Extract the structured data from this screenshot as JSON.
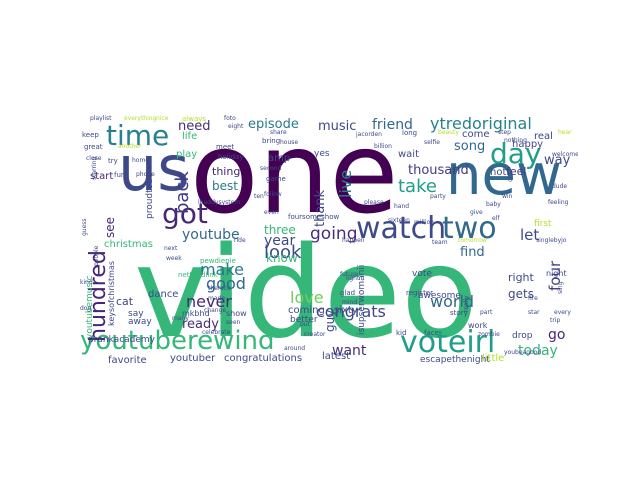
{
  "words": [
    {
      "text": "video",
      "color": "#35b779"
    },
    {
      "text": "one",
      "color": "#440154"
    },
    {
      "text": "new",
      "color": "#31688e"
    },
    {
      "text": "us",
      "color": "#3e4989"
    },
    {
      "text": "time",
      "color": "#26828e"
    },
    {
      "text": "got",
      "color": "#482677"
    },
    {
      "text": "day",
      "color": "#1f9e89"
    },
    {
      "text": "two",
      "color": "#31688e"
    },
    {
      "text": "watch",
      "color": "#3e4989"
    },
    {
      "text": "youtuberewind",
      "color": "#35b779"
    },
    {
      "text": "voteirl",
      "color": "#1f9e89"
    },
    {
      "text": "hundred",
      "color": "#482677"
    },
    {
      "text": "ytredoriginal",
      "color": "#26828e"
    },
    {
      "text": "episode",
      "color": "#2a788e"
    },
    {
      "text": "music",
      "color": "#3e4989"
    },
    {
      "text": "friend",
      "color": "#31688e"
    },
    {
      "text": "need",
      "color": "#472d7b"
    },
    {
      "text": "back",
      "color": "#443983"
    },
    {
      "text": "look",
      "color": "#3e4989"
    },
    {
      "text": "going",
      "color": "#472d7b"
    },
    {
      "text": "make",
      "color": "#2a788e"
    },
    {
      "text": "good",
      "color": "#31688e"
    },
    {
      "text": "year",
      "color": "#3e4989"
    },
    {
      "text": "love",
      "color": "#6ece58"
    },
    {
      "text": "never",
      "color": "#482677"
    },
    {
      "text": "youtube",
      "color": "#31688e"
    },
    {
      "text": "congrats",
      "color": "#3e4989"
    },
    {
      "text": "world",
      "color": "#31688e"
    },
    {
      "text": "want",
      "color": "#472d7b"
    },
    {
      "text": "today",
      "color": "#35b779"
    },
    {
      "text": "thousand",
      "color": "#443983"
    },
    {
      "text": "take",
      "color": "#1f9e89"
    },
    {
      "text": "song",
      "color": "#31688e"
    },
    {
      "text": "live",
      "color": "#2a788e"
    },
    {
      "text": "let",
      "color": "#3e4989"
    },
    {
      "text": "four",
      "color": "#433e85"
    },
    {
      "text": "go",
      "color": "#482677"
    },
    {
      "text": "gets",
      "color": "#3e4989"
    },
    {
      "text": "find",
      "color": "#31688e"
    },
    {
      "text": "ready",
      "color": "#472d7b"
    },
    {
      "text": "three",
      "color": "#35b779"
    },
    {
      "text": "thank",
      "color": "#3e4989"
    },
    {
      "text": "know",
      "color": "#35b779"
    },
    {
      "text": "guy",
      "color": "#3e4989"
    },
    {
      "text": "best",
      "color": "#2a788e"
    },
    {
      "text": "christmas",
      "color": "#35b779"
    },
    {
      "text": "see",
      "color": "#482677"
    },
    {
      "text": "way",
      "color": "#3e4989"
    },
    {
      "text": "feel",
      "color": "#443983"
    },
    {
      "text": "hot",
      "color": "#3e4989"
    },
    {
      "text": "right",
      "color": "#3e4989"
    },
    {
      "text": "happy",
      "color": "#3e4989"
    },
    {
      "text": "wait",
      "color": "#3e4989"
    },
    {
      "text": "come",
      "color": "#3e4989"
    },
    {
      "text": "thing",
      "color": "#482677"
    },
    {
      "text": "start",
      "color": "#482677"
    },
    {
      "text": "life",
      "color": "#35b779"
    },
    {
      "text": "play",
      "color": "#35b779"
    },
    {
      "text": "favorite",
      "color": "#3e4989"
    },
    {
      "text": "youtuber",
      "color": "#3e4989"
    },
    {
      "text": "congratulations",
      "color": "#3e4989"
    },
    {
      "text": "latest",
      "color": "#3e4989"
    },
    {
      "text": "escapethenight",
      "color": "#3e4989"
    },
    {
      "text": "little",
      "color": "#b5de2b"
    },
    {
      "text": "coming",
      "color": "#3e4989"
    },
    {
      "text": "sixty",
      "color": "#3e4989"
    },
    {
      "text": "awesome",
      "color": "#3e4989"
    },
    {
      "text": "dance",
      "color": "#3e4989"
    },
    {
      "text": "cat",
      "color": "#3e4989"
    },
    {
      "text": "say",
      "color": "#3e4989"
    },
    {
      "text": "away",
      "color": "#3e4989"
    },
    {
      "text": "drop",
      "color": "#3e4989"
    },
    {
      "text": "amp",
      "color": "#3e4989"
    },
    {
      "text": "real",
      "color": "#3e4989"
    },
    {
      "text": "yes",
      "color": "#3e4989"
    },
    {
      "text": "better",
      "color": "#3e4989"
    },
    {
      "text": "show",
      "color": "#3e4989"
    },
    {
      "text": "vote",
      "color": "#3e4989"
    },
    {
      "text": "work",
      "color": "#3e4989"
    },
    {
      "text": "night",
      "color": "#3e4989"
    },
    {
      "text": "first",
      "color": "#b5de2b"
    },
    {
      "text": "proudtobe",
      "color": "#3e4989"
    },
    {
      "text": "youtubemusic",
      "color": "#35b779"
    },
    {
      "text": "isupserwomanii",
      "color": "#3e4989"
    },
    {
      "text": "mkbhd",
      "color": "#3e4989"
    },
    {
      "text": "prankacademy",
      "color": "#3e4989"
    },
    {
      "text": "keysofchristmas",
      "color": "#3e4989"
    },
    {
      "text": "pewdiepie",
      "color": "#35b779"
    },
    {
      "text": "nettandlink",
      "color": "#35b779"
    },
    {
      "text": "foursomeshow",
      "color": "#3e4989"
    },
    {
      "text": "jacorden",
      "color": "#3e4989"
    },
    {
      "text": "billion",
      "color": "#3e4989"
    },
    {
      "text": "holiday",
      "color": "#3e4989"
    },
    {
      "text": "meet",
      "color": "#3e4989"
    },
    {
      "text": "bring",
      "color": "#3e4989"
    },
    {
      "text": "share",
      "color": "#3e4989"
    },
    {
      "text": "foto",
      "color": "#3e4989"
    },
    {
      "text": "eight",
      "color": "#3e4989"
    },
    {
      "text": "always",
      "color": "#b5de2b"
    },
    {
      "text": "nice",
      "color": "#b5de2b"
    },
    {
      "text": "playlist",
      "color": "#3e4989"
    },
    {
      "text": "keep",
      "color": "#3e4989"
    },
    {
      "text": "great",
      "color": "#3e4989"
    },
    {
      "text": "close",
      "color": "#3e4989"
    },
    {
      "text": "home",
      "color": "#3e4989"
    },
    {
      "text": "phone",
      "color": "#3e4989"
    },
    {
      "text": "try",
      "color": "#3e4989"
    },
    {
      "text": "fun",
      "color": "#3e4989"
    },
    {
      "text": "kind",
      "color": "#3e4989"
    },
    {
      "text": "dog",
      "color": "#3e4989"
    },
    {
      "text": "people",
      "color": "#3e4989"
    },
    {
      "text": "week",
      "color": "#3e4989"
    },
    {
      "text": "next",
      "color": "#3e4989"
    },
    {
      "text": "change",
      "color": "#3e4989"
    },
    {
      "text": "made",
      "color": "#3e4989"
    },
    {
      "text": "therock",
      "color": "#3e4989"
    },
    {
      "text": "ride",
      "color": "#3e4989"
    },
    {
      "text": "ten",
      "color": "#3e4989"
    },
    {
      "text": "even",
      "color": "#3e4989"
    },
    {
      "text": "follow",
      "color": "#3e4989"
    },
    {
      "text": "game",
      "color": "#3e4989"
    },
    {
      "text": "second",
      "color": "#3e4989"
    },
    {
      "text": "house",
      "color": "#3e4989"
    },
    {
      "text": "put",
      "color": "#3e4989"
    },
    {
      "text": "glad",
      "color": "#3e4989"
    },
    {
      "text": "light",
      "color": "#3e4989"
    },
    {
      "text": "future",
      "color": "#3e4989"
    },
    {
      "text": "mind",
      "color": "#3e4989"
    },
    {
      "text": "kid",
      "color": "#3e4989"
    },
    {
      "text": "face",
      "color": "#3e4989"
    },
    {
      "text": "register",
      "color": "#3e4989"
    },
    {
      "text": "story",
      "color": "#3e4989"
    },
    {
      "text": "every",
      "color": "#3e4989"
    },
    {
      "text": "trip",
      "color": "#3e4989"
    },
    {
      "text": "star",
      "color": "#3e4989"
    },
    {
      "text": "fire",
      "color": "#3e4989"
    },
    {
      "text": "sing",
      "color": "#3e4989"
    },
    {
      "text": "celebrate",
      "color": "#3e4989"
    },
    {
      "text": "creator",
      "color": "#3e4989"
    },
    {
      "text": "around",
      "color": "#3e4989"
    },
    {
      "text": "please",
      "color": "#3e4989"
    },
    {
      "text": "sixteen",
      "color": "#3e4989"
    },
    {
      "text": "party",
      "color": "#3e4989"
    },
    {
      "text": "selfie",
      "color": "#3e4989"
    },
    {
      "text": "give",
      "color": "#3e4989"
    },
    {
      "text": "dude",
      "color": "#3e4989"
    },
    {
      "text": "welcome",
      "color": "#3e4989"
    },
    {
      "text": "nothing",
      "color": "#3e4989"
    },
    {
      "text": "step",
      "color": "#3e4989"
    },
    {
      "text": "hear",
      "color": "#b5de2b"
    },
    {
      "text": "long",
      "color": "#3e4989"
    },
    {
      "text": "beauty",
      "color": "#b5de2b"
    },
    {
      "text": "feeling",
      "color": "#3e4989"
    },
    {
      "text": "million",
      "color": "#3e4989"
    },
    {
      "text": "team",
      "color": "#3e4989"
    },
    {
      "text": "tomorrow",
      "color": "#b5de2b"
    },
    {
      "text": "really",
      "color": "#3e4989"
    },
    {
      "text": "zombie",
      "color": "#3e4989"
    },
    {
      "text": "part",
      "color": "#3e4989"
    },
    {
      "text": "hand",
      "color": "#3e4989"
    },
    {
      "text": "baby",
      "color": "#3e4989"
    },
    {
      "text": "win",
      "color": "#3e4989"
    },
    {
      "text": "elf",
      "color": "#3e4989"
    },
    {
      "text": "old",
      "color": "#3e4989"
    },
    {
      "text": "singlebyjo",
      "color": "#3e4989"
    },
    {
      "text": "youbeagood",
      "color": "#3e4989"
    },
    {
      "text": "lbuddysystem",
      "color": "#3e4989"
    },
    {
      "text": "happen",
      "color": "#3e4989"
    },
    {
      "text": "seen",
      "color": "#3e4989"
    },
    {
      "text": "many",
      "color": "#3e4989"
    },
    {
      "text": "guess",
      "color": "#3e4989"
    },
    {
      "text": "starring",
      "color": "#3e4989"
    },
    {
      "text": "everything",
      "color": "#b5de2b"
    },
    {
      "text": "another",
      "color": "#b5de2b"
    },
    {
      "text": "think",
      "color": "#b5de2b"
    }
  ]
}
